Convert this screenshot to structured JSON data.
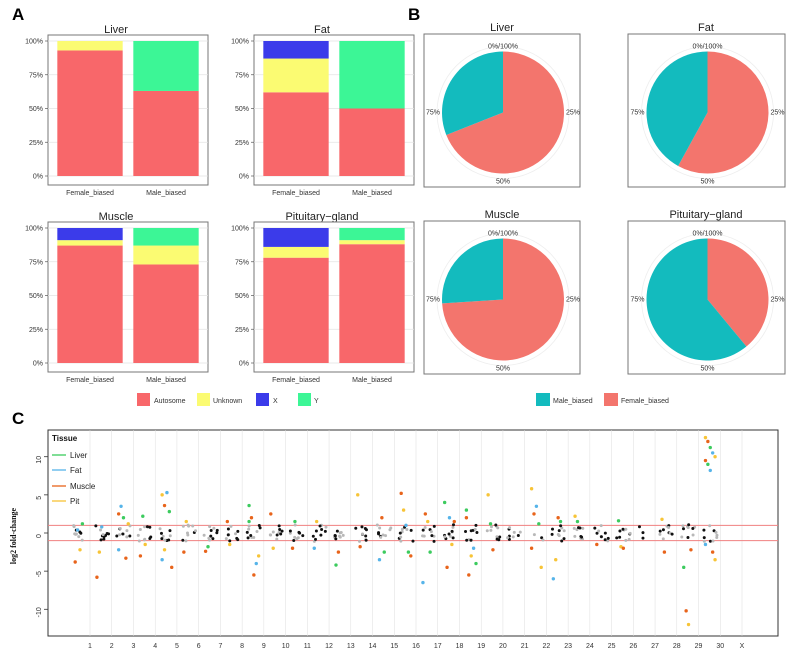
{
  "panel_labels": {
    "a": "A",
    "b": "B",
    "c": "C"
  },
  "colors": {
    "autosome": "#F8676A",
    "unknown": "#FBFB72",
    "x": "#3B3BEA",
    "y": "#3CF696",
    "male": "#13BBBE",
    "female": "#F3756D",
    "liver": "#3CCB5E",
    "fat": "#56B4E9",
    "muscle": "#E8641B",
    "pit": "#F7C437",
    "hline": "#F08080"
  },
  "chart_data": [
    {
      "type": "bar",
      "stacked": true,
      "title": "Liver",
      "categories": [
        "Female_biased",
        "Male_biased"
      ],
      "series": [
        {
          "name": "Autosome",
          "values": [
            93,
            63
          ]
        },
        {
          "name": "Unknown",
          "values": [
            7,
            0
          ]
        },
        {
          "name": "X",
          "values": [
            0,
            0
          ]
        },
        {
          "name": "Y",
          "values": [
            0,
            37
          ]
        }
      ],
      "yticks": [
        "0%",
        "25%",
        "50%",
        "75%",
        "100%"
      ],
      "ylim": [
        0,
        100
      ]
    },
    {
      "type": "bar",
      "stacked": true,
      "title": "Fat",
      "categories": [
        "Female_biased",
        "Male_biased"
      ],
      "series": [
        {
          "name": "Autosome",
          "values": [
            62,
            50
          ]
        },
        {
          "name": "Unknown",
          "values": [
            25,
            0
          ]
        },
        {
          "name": "X",
          "values": [
            13,
            0
          ]
        },
        {
          "name": "Y",
          "values": [
            0,
            50
          ]
        }
      ],
      "yticks": [
        "0%",
        "25%",
        "50%",
        "75%",
        "100%"
      ],
      "ylim": [
        0,
        100
      ]
    },
    {
      "type": "bar",
      "stacked": true,
      "title": "Muscle",
      "categories": [
        "Female_biased",
        "Male_biased"
      ],
      "series": [
        {
          "name": "Autosome",
          "values": [
            87,
            73
          ]
        },
        {
          "name": "Unknown",
          "values": [
            4,
            14
          ]
        },
        {
          "name": "X",
          "values": [
            9,
            0
          ]
        },
        {
          "name": "Y",
          "values": [
            0,
            13
          ]
        }
      ],
      "yticks": [
        "0%",
        "25%",
        "50%",
        "75%",
        "100%"
      ],
      "ylim": [
        0,
        100
      ]
    },
    {
      "type": "bar",
      "stacked": true,
      "title": "Pituitary−gland",
      "categories": [
        "Female_biased",
        "Male_biased"
      ],
      "series": [
        {
          "name": "Autosome",
          "values": [
            78,
            88
          ]
        },
        {
          "name": "Unknown",
          "values": [
            8,
            3
          ]
        },
        {
          "name": "X",
          "values": [
            14,
            0
          ]
        },
        {
          "name": "Y",
          "values": [
            0,
            9
          ]
        }
      ],
      "yticks": [
        "0%",
        "25%",
        "50%",
        "75%",
        "100%"
      ],
      "ylim": [
        0,
        100
      ]
    },
    {
      "type": "pie",
      "title": "Liver",
      "slices": [
        {
          "name": "Male_biased",
          "value": 31
        },
        {
          "name": "Female_biased",
          "value": 69
        }
      ],
      "labels": [
        "0%/100%",
        "25%",
        "50%",
        "75%"
      ]
    },
    {
      "type": "pie",
      "title": "Fat",
      "slices": [
        {
          "name": "Male_biased",
          "value": 42
        },
        {
          "name": "Female_biased",
          "value": 58
        }
      ],
      "labels": [
        "0%/100%",
        "25%",
        "50%",
        "75%"
      ]
    },
    {
      "type": "pie",
      "title": "Muscle",
      "slices": [
        {
          "name": "Male_biased",
          "value": 26
        },
        {
          "name": "Female_biased",
          "value": 74
        }
      ],
      "labels": [
        "0%/100%",
        "25%",
        "50%",
        "75%"
      ]
    },
    {
      "type": "pie",
      "title": "Pituitary−gland",
      "slices": [
        {
          "name": "Male_biased",
          "value": 61
        },
        {
          "name": "Female_biased",
          "value": 39
        }
      ],
      "labels": [
        "0%/100%",
        "25%",
        "50%",
        "75%"
      ]
    },
    {
      "type": "scatter",
      "subtype": "manhattan",
      "ylabel": "log2 fold-change",
      "ylim": [
        -13.5,
        13.5
      ],
      "yticks": [
        -10,
        -5,
        0,
        5,
        10
      ],
      "hlines": [
        -1,
        1
      ],
      "chromosomes": [
        "1",
        "2",
        "3",
        "4",
        "5",
        "6",
        "7",
        "8",
        "9",
        "10",
        "11",
        "12",
        "13",
        "14",
        "15",
        "16",
        "17",
        "18",
        "19",
        "20",
        "21",
        "22",
        "23",
        "24",
        "25",
        "26",
        "27",
        "28",
        "29",
        "30",
        "X"
      ],
      "legend_title": "Tissue",
      "legend": [
        "Liver",
        "Fat",
        "Muscle",
        "Pit"
      ],
      "loci": [
        {
          "chr": "1",
          "v": [
            {
              "t": "muscle",
              "y": -3.8
            },
            {
              "t": "fat",
              "y": 0.4
            },
            {
              "t": "pit",
              "y": -2.2
            },
            {
              "t": "liver",
              "y": 1.2
            }
          ]
        },
        {
          "chr": "2",
          "v": [
            {
              "t": "muscle",
              "y": -5.8
            },
            {
              "t": "pit",
              "y": -2.5
            },
            {
              "t": "fat",
              "y": 0.8
            }
          ]
        },
        {
          "chr": "3",
          "v": [
            {
              "t": "muscle",
              "y": 2.5
            },
            {
              "t": "fat",
              "y": 3.5
            },
            {
              "t": "liver",
              "y": 2.0
            },
            {
              "t": "muscle",
              "y": -3.3
            },
            {
              "t": "pit",
              "y": 1.2
            },
            {
              "t": "fat",
              "y": -2.2
            }
          ]
        },
        {
          "chr": "4",
          "v": [
            {
              "t": "muscle",
              "y": -3.0
            },
            {
              "t": "liver",
              "y": 2.2
            },
            {
              "t": "pit",
              "y": -1.5
            }
          ]
        },
        {
          "chr": "5",
          "v": [
            {
              "t": "pit",
              "y": 5.0
            },
            {
              "t": "muscle",
              "y": 3.6
            },
            {
              "t": "fat",
              "y": 5.3
            },
            {
              "t": "liver",
              "y": 2.8
            },
            {
              "t": "muscle",
              "y": -4.5
            },
            {
              "t": "fat",
              "y": -3.5
            },
            {
              "t": "pit",
              "y": -2.2
            }
          ]
        },
        {
          "chr": "6",
          "v": [
            {
              "t": "muscle",
              "y": -2.5
            },
            {
              "t": "pit",
              "y": 1.5
            }
          ]
        },
        {
          "chr": "7",
          "v": [
            {
              "t": "muscle",
              "y": -2.4
            },
            {
              "t": "liver",
              "y": -1.8
            }
          ]
        },
        {
          "chr": "8",
          "v": [
            {
              "t": "muscle",
              "y": 1.5
            },
            {
              "t": "pit",
              "y": -1.5
            }
          ]
        },
        {
          "chr": "9",
          "v": [
            {
              "t": "liver",
              "y": 3.6
            },
            {
              "t": "muscle",
              "y": 2.0
            },
            {
              "t": "muscle",
              "y": -5.5
            },
            {
              "t": "fat",
              "y": -4.0
            },
            {
              "t": "pit",
              "y": -3.0
            },
            {
              "t": "liver",
              "y": 1.5
            }
          ]
        },
        {
          "chr": "10",
          "v": [
            {
              "t": "muscle",
              "y": 2.5
            },
            {
              "t": "pit",
              "y": -2.0
            }
          ]
        },
        {
          "chr": "11",
          "v": [
            {
              "t": "muscle",
              "y": -2.0
            },
            {
              "t": "liver",
              "y": 1.5
            }
          ]
        },
        {
          "chr": "12",
          "v": [
            {
              "t": "fat",
              "y": -2.0
            },
            {
              "t": "pit",
              "y": 1.5
            }
          ]
        },
        {
          "chr": "13",
          "v": [
            {
              "t": "liver",
              "y": -4.2
            },
            {
              "t": "muscle",
              "y": -2.5
            }
          ]
        },
        {
          "chr": "14",
          "v": [
            {
              "t": "pit",
              "y": 5.0
            },
            {
              "t": "muscle",
              "y": -1.8
            }
          ]
        },
        {
          "chr": "15",
          "v": [
            {
              "t": "fat",
              "y": -3.5
            },
            {
              "t": "muscle",
              "y": 2.0
            },
            {
              "t": "liver",
              "y": -2.5
            }
          ]
        },
        {
          "chr": "16",
          "v": [
            {
              "t": "muscle",
              "y": 5.2
            },
            {
              "t": "pit",
              "y": 3.0
            },
            {
              "t": "fat",
              "y": 1.0
            },
            {
              "t": "liver",
              "y": -2.5
            },
            {
              "t": "muscle",
              "y": -3.0
            }
          ]
        },
        {
          "chr": "17",
          "v": [
            {
              "t": "fat",
              "y": -6.5
            },
            {
              "t": "muscle",
              "y": 2.5
            },
            {
              "t": "pit",
              "y": 1.5
            },
            {
              "t": "liver",
              "y": -2.5
            }
          ]
        },
        {
          "chr": "18",
          "v": [
            {
              "t": "liver",
              "y": 4.0
            },
            {
              "t": "muscle",
              "y": -4.5
            },
            {
              "t": "fat",
              "y": 2.0
            },
            {
              "t": "pit",
              "y": -1.5
            },
            {
              "t": "muscle",
              "y": 1.5
            }
          ]
        },
        {
          "chr": "19",
          "v": [
            {
              "t": "liver",
              "y": 3.0
            },
            {
              "t": "muscle",
              "y": -5.5
            },
            {
              "t": "pit",
              "y": -3.0
            },
            {
              "t": "fat",
              "y": -2.0
            },
            {
              "t": "liver",
              "y": -4.0
            },
            {
              "t": "muscle",
              "y": 2.0
            }
          ]
        },
        {
          "chr": "20",
          "v": [
            {
              "t": "pit",
              "y": 5.0
            },
            {
              "t": "liver",
              "y": 1.2
            },
            {
              "t": "muscle",
              "y": -2.2
            }
          ]
        },
        {
          "chr": "21",
          "v": []
        },
        {
          "chr": "22",
          "v": [
            {
              "t": "pit",
              "y": 5.8
            },
            {
              "t": "muscle",
              "y": 2.5
            },
            {
              "t": "fat",
              "y": 3.5
            },
            {
              "t": "liver",
              "y": 1.2
            },
            {
              "t": "pit",
              "y": -4.5
            },
            {
              "t": "muscle",
              "y": -2.0
            }
          ]
        },
        {
          "chr": "23",
          "v": [
            {
              "t": "fat",
              "y": -6.0
            },
            {
              "t": "pit",
              "y": -3.5
            },
            {
              "t": "muscle",
              "y": 2.0
            },
            {
              "t": "liver",
              "y": 1.5
            }
          ]
        },
        {
          "chr": "24",
          "v": [
            {
              "t": "pit",
              "y": 2.2
            },
            {
              "t": "liver",
              "y": 1.5
            }
          ]
        },
        {
          "chr": "25",
          "v": [
            {
              "t": "muscle",
              "y": -1.5
            }
          ]
        },
        {
          "chr": "26",
          "v": [
            {
              "t": "liver",
              "y": 1.6
            },
            {
              "t": "pit",
              "y": -1.8
            },
            {
              "t": "muscle",
              "y": -2.0
            }
          ]
        },
        {
          "chr": "27",
          "v": []
        },
        {
          "chr": "28",
          "v": [
            {
              "t": "pit",
              "y": 1.8
            },
            {
              "t": "muscle",
              "y": -2.5
            }
          ]
        },
        {
          "chr": "29",
          "v": [
            {
              "t": "liver",
              "y": -4.5
            },
            {
              "t": "muscle",
              "y": -10.2
            },
            {
              "t": "pit",
              "y": -12.0
            },
            {
              "t": "muscle",
              "y": -2.2
            }
          ]
        },
        {
          "chr": "30",
          "v": [
            {
              "t": "pit",
              "y": 12.5
            },
            {
              "t": "muscle",
              "y": 12.0
            },
            {
              "t": "liver",
              "y": 11.2
            },
            {
              "t": "fat",
              "y": 10.5
            },
            {
              "t": "pit",
              "y": 10.0
            },
            {
              "t": "muscle",
              "y": 9.5
            },
            {
              "t": "liver",
              "y": 9.0
            },
            {
              "t": "fat",
              "y": 8.2
            },
            {
              "t": "muscle",
              "y": -2.5
            },
            {
              "t": "pit",
              "y": -3.5
            },
            {
              "t": "fat",
              "y": -1.5
            }
          ]
        },
        {
          "chr": "X",
          "v": []
        }
      ]
    }
  ],
  "legend_a": [
    "Autosome",
    "Unknown",
    "X",
    "Y"
  ],
  "legend_b": [
    "Male_biased",
    "Female_biased"
  ]
}
